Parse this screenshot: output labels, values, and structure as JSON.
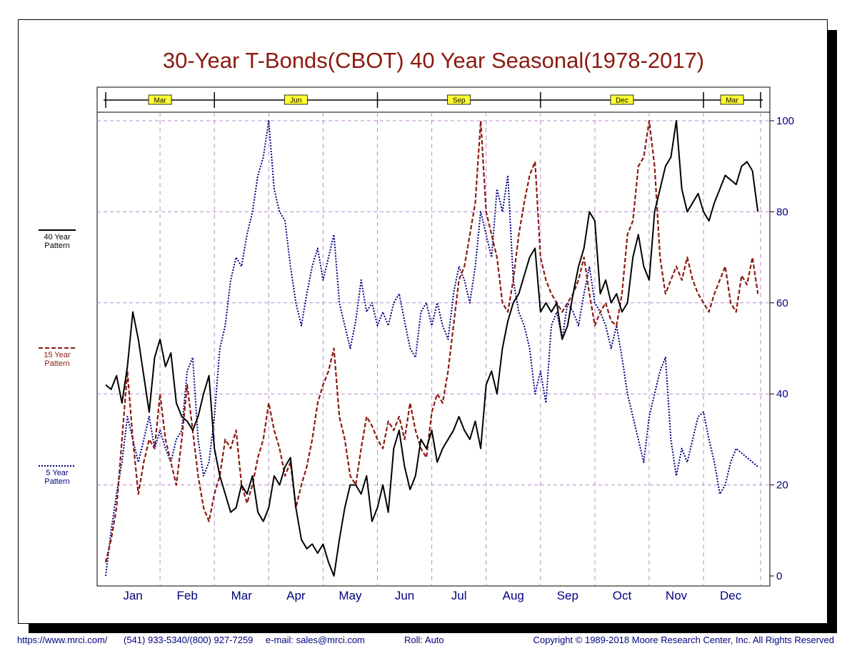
{
  "chart_data": {
    "type": "line",
    "title": "30-Year T-Bonds(CBOT) 40 Year Seasonal(1978-2017)",
    "x_month_labels": [
      "Jan",
      "Feb",
      "Mar",
      "Apr",
      "May",
      "Jun",
      "Jul",
      "Aug",
      "Sep",
      "Oct",
      "Nov",
      "Dec"
    ],
    "contract_labels": [
      "Mar",
      "Jun",
      "Sep",
      "Dec",
      "Mar"
    ],
    "contract_boundaries": [
      0,
      2,
      5,
      8,
      11,
      12.05
    ],
    "x_range": [
      0,
      12.05
    ],
    "ylim": [
      0,
      100
    ],
    "yticks": [
      0,
      20,
      40,
      60,
      80,
      100
    ],
    "grid": true,
    "legend_placement": "left",
    "colors": {
      "title": "#8b1a10",
      "axis_text": "#000080",
      "grid": "#b48ec8",
      "contract_box": "#ffff33"
    },
    "series": [
      {
        "name": "40 Year Pattern",
        "color": "#000000",
        "dash": "solid",
        "x": [
          0.0,
          0.1,
          0.2,
          0.3,
          0.4,
          0.5,
          0.6,
          0.7,
          0.8,
          0.9,
          1.0,
          1.1,
          1.2,
          1.3,
          1.4,
          1.5,
          1.6,
          1.7,
          1.8,
          1.9,
          2.0,
          2.1,
          2.2,
          2.3,
          2.4,
          2.5,
          2.6,
          2.7,
          2.8,
          2.9,
          3.0,
          3.1,
          3.2,
          3.3,
          3.4,
          3.5,
          3.6,
          3.7,
          3.8,
          3.9,
          4.0,
          4.1,
          4.2,
          4.3,
          4.4,
          4.5,
          4.6,
          4.7,
          4.8,
          4.9,
          5.0,
          5.1,
          5.2,
          5.3,
          5.4,
          5.5,
          5.6,
          5.7,
          5.8,
          5.9,
          6.0,
          6.1,
          6.2,
          6.3,
          6.4,
          6.5,
          6.6,
          6.7,
          6.8,
          6.9,
          7.0,
          7.1,
          7.2,
          7.3,
          7.4,
          7.5,
          7.6,
          7.7,
          7.8,
          7.9,
          8.0,
          8.1,
          8.2,
          8.3,
          8.4,
          8.5,
          8.6,
          8.7,
          8.8,
          8.9,
          9.0,
          9.1,
          9.2,
          9.3,
          9.4,
          9.5,
          9.6,
          9.7,
          9.8,
          9.9,
          10.0,
          10.1,
          10.2,
          10.3,
          10.4,
          10.5,
          10.6,
          10.7,
          10.8,
          10.9,
          11.0,
          11.1,
          11.2,
          11.3,
          11.4,
          11.5,
          11.6,
          11.7,
          11.8,
          11.9,
          12.0
        ],
        "y": [
          42,
          41,
          44,
          38,
          46,
          58,
          52,
          44,
          36,
          48,
          52,
          46,
          49,
          38,
          35,
          34,
          32,
          35,
          40,
          44,
          28,
          22,
          18,
          14,
          15,
          20,
          18,
          22,
          14,
          12,
          15,
          22,
          20,
          24,
          26,
          15,
          8,
          6,
          7,
          5,
          7,
          3,
          0,
          8,
          15,
          20,
          20,
          18,
          22,
          12,
          15,
          20,
          14,
          28,
          32,
          24,
          19,
          22,
          30,
          28,
          32,
          25,
          28,
          30,
          32,
          35,
          32,
          30,
          34,
          28,
          42,
          45,
          40,
          50,
          56,
          60,
          62,
          66,
          70,
          72,
          58,
          60,
          58,
          60,
          52,
          55,
          62,
          68,
          72,
          80,
          78,
          62,
          65,
          60,
          62,
          58,
          60,
          70,
          75,
          68,
          65,
          80,
          85,
          90,
          92,
          100,
          85,
          80,
          82,
          84,
          80,
          78,
          82,
          85,
          88,
          87,
          86,
          90,
          91,
          89,
          80
        ]
      },
      {
        "name": "15 Year Pattern",
        "color": "#8b1a10",
        "dash": "dashed",
        "x": [
          0.0,
          0.1,
          0.2,
          0.3,
          0.4,
          0.5,
          0.6,
          0.7,
          0.8,
          0.9,
          1.0,
          1.1,
          1.2,
          1.3,
          1.4,
          1.5,
          1.6,
          1.7,
          1.8,
          1.9,
          2.0,
          2.1,
          2.2,
          2.3,
          2.4,
          2.5,
          2.6,
          2.7,
          2.8,
          2.9,
          3.0,
          3.1,
          3.2,
          3.3,
          3.4,
          3.5,
          3.6,
          3.7,
          3.8,
          3.9,
          4.0,
          4.1,
          4.2,
          4.3,
          4.4,
          4.5,
          4.6,
          4.7,
          4.8,
          4.9,
          5.0,
          5.1,
          5.2,
          5.3,
          5.4,
          5.5,
          5.6,
          5.7,
          5.8,
          5.9,
          6.0,
          6.1,
          6.2,
          6.3,
          6.4,
          6.5,
          6.6,
          6.7,
          6.8,
          6.9,
          7.0,
          7.1,
          7.2,
          7.3,
          7.4,
          7.5,
          7.6,
          7.7,
          7.8,
          7.9,
          8.0,
          8.1,
          8.2,
          8.3,
          8.4,
          8.5,
          8.6,
          8.7,
          8.8,
          8.9,
          9.0,
          9.1,
          9.2,
          9.3,
          9.4,
          9.5,
          9.6,
          9.7,
          9.8,
          9.9,
          10.0,
          10.1,
          10.2,
          10.3,
          10.4,
          10.5,
          10.6,
          10.7,
          10.8,
          10.9,
          11.0,
          11.1,
          11.2,
          11.3,
          11.4,
          11.5,
          11.6,
          11.7,
          11.8,
          11.9,
          12.0
        ],
        "y": [
          3,
          8,
          15,
          30,
          45,
          30,
          18,
          25,
          30,
          28,
          40,
          30,
          25,
          20,
          30,
          42,
          32,
          22,
          15,
          12,
          18,
          22,
          30,
          28,
          32,
          20,
          16,
          20,
          26,
          30,
          38,
          32,
          28,
          22,
          25,
          15,
          20,
          24,
          30,
          38,
          42,
          45,
          50,
          35,
          30,
          22,
          20,
          28,
          35,
          33,
          30,
          28,
          34,
          32,
          35,
          30,
          38,
          32,
          28,
          26,
          36,
          40,
          38,
          45,
          55,
          65,
          68,
          75,
          82,
          100,
          80,
          75,
          70,
          60,
          58,
          65,
          75,
          82,
          88,
          91,
          70,
          65,
          62,
          60,
          58,
          60,
          62,
          65,
          70,
          62,
          55,
          58,
          60,
          56,
          55,
          62,
          75,
          78,
          90,
          92,
          100,
          90,
          70,
          62,
          65,
          68,
          65,
          70,
          65,
          62,
          60,
          58,
          62,
          65,
          68,
          60,
          58,
          66,
          64,
          70,
          62
        ]
      },
      {
        "name": "5 Year Pattern",
        "color": "#000080",
        "dash": "dotted",
        "x": [
          0.0,
          0.1,
          0.2,
          0.3,
          0.4,
          0.5,
          0.6,
          0.7,
          0.8,
          0.9,
          1.0,
          1.1,
          1.2,
          1.3,
          1.4,
          1.5,
          1.6,
          1.7,
          1.8,
          1.9,
          2.0,
          2.1,
          2.2,
          2.3,
          2.4,
          2.5,
          2.6,
          2.7,
          2.8,
          2.9,
          3.0,
          3.1,
          3.2,
          3.3,
          3.4,
          3.5,
          3.6,
          3.7,
          3.8,
          3.9,
          4.0,
          4.1,
          4.2,
          4.3,
          4.4,
          4.5,
          4.6,
          4.7,
          4.8,
          4.9,
          5.0,
          5.1,
          5.2,
          5.3,
          5.4,
          5.5,
          5.6,
          5.7,
          5.8,
          5.9,
          6.0,
          6.1,
          6.2,
          6.3,
          6.4,
          6.5,
          6.6,
          6.7,
          6.8,
          6.9,
          7.0,
          7.1,
          7.2,
          7.3,
          7.4,
          7.5,
          7.6,
          7.7,
          7.8,
          7.9,
          8.0,
          8.1,
          8.2,
          8.3,
          8.4,
          8.5,
          8.6,
          8.7,
          8.8,
          8.9,
          9.0,
          9.1,
          9.2,
          9.3,
          9.4,
          9.5,
          9.6,
          9.7,
          9.8,
          9.9,
          10.0,
          10.1,
          10.2,
          10.3,
          10.4,
          10.5,
          10.6,
          10.7,
          10.8,
          10.9,
          11.0,
          11.1,
          11.2,
          11.3,
          11.4,
          11.5,
          11.6,
          11.7,
          11.8,
          11.9,
          12.0
        ],
        "y": [
          0,
          10,
          18,
          25,
          35,
          30,
          25,
          30,
          35,
          28,
          32,
          28,
          25,
          30,
          32,
          45,
          48,
          30,
          22,
          25,
          35,
          50,
          55,
          65,
          70,
          68,
          75,
          80,
          88,
          92,
          100,
          85,
          80,
          78,
          68,
          60,
          55,
          62,
          68,
          72,
          65,
          70,
          75,
          60,
          55,
          50,
          56,
          65,
          58,
          60,
          55,
          58,
          55,
          60,
          62,
          56,
          50,
          48,
          58,
          60,
          55,
          60,
          55,
          52,
          62,
          68,
          65,
          60,
          68,
          80,
          75,
          70,
          85,
          80,
          88,
          65,
          58,
          55,
          50,
          40,
          45,
          38,
          55,
          58,
          52,
          60,
          58,
          55,
          62,
          68,
          60,
          58,
          55,
          50,
          55,
          48,
          40,
          35,
          30,
          25,
          35,
          40,
          45,
          48,
          30,
          22,
          28,
          25,
          30,
          35,
          36,
          30,
          25,
          18,
          20,
          25,
          28,
          27,
          26,
          25,
          24
        ]
      }
    ]
  },
  "footer": {
    "url": "https://www.mrci.com/",
    "phone": "(541) 933-5340/(800) 927-7259",
    "email": "e-mail: sales@mrci.com",
    "roll": "Roll: Auto",
    "copyright": "Copyright © 1989-2018 Moore Research Center, Inc. All Rights Reserved"
  }
}
